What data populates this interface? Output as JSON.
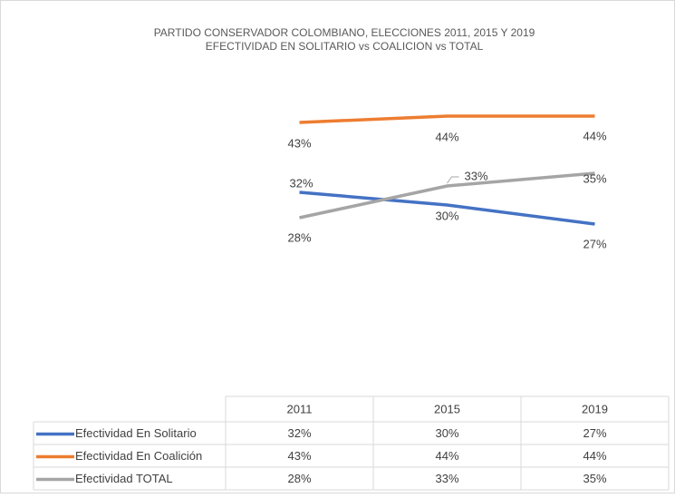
{
  "chart_data": {
    "type": "line",
    "title": [
      "PARTIDO  CONSERVADOR  COLOMBIANO,  ELECCIONES 2011, 2015 Y 2019",
      "EFECTIVIDAD EN SOLITARIO vs COALICION vs TOTAL"
    ],
    "categories": [
      "2011",
      "2015",
      "2019"
    ],
    "ylim": [
      0,
      50
    ],
    "series": [
      {
        "name": "Efectividad En Solitario",
        "color": "#4472c4",
        "values": [
          32,
          30,
          27
        ],
        "value_labels": [
          "32%",
          "30%",
          "27%"
        ]
      },
      {
        "name": "Efectividad En Coalición",
        "color": "#ed7d31",
        "values": [
          43,
          44,
          44
        ],
        "value_labels": [
          "43%",
          "44%",
          "44%"
        ]
      },
      {
        "name": "Efectividad TOTAL",
        "color": "#a5a5a5",
        "values": [
          28,
          33,
          35
        ],
        "value_labels": [
          "28%",
          "33%",
          "35%"
        ]
      }
    ]
  }
}
